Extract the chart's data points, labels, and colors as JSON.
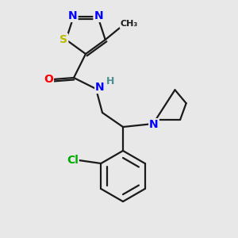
{
  "background_color": "#e8e8e8",
  "bond_color": "#1a1a1a",
  "bond_width": 1.6,
  "atom_colors": {
    "N": "#0000ff",
    "S": "#bbbb00",
    "O": "#ff0000",
    "Cl": "#00aa00",
    "C": "#1a1a1a",
    "H": "#4a9090"
  },
  "font_size": 9,
  "figsize": [
    3.0,
    3.0
  ],
  "dpi": 100
}
